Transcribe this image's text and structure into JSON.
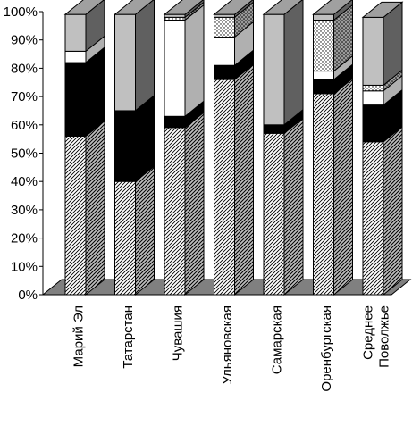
{
  "chart_data": {
    "type": "bar",
    "stacked": true,
    "three_d": true,
    "title": "",
    "xlabel": "",
    "ylabel": "",
    "ylim": [
      0,
      100
    ],
    "yticks": [
      "0%",
      "10%",
      "20%",
      "30%",
      "40%",
      "50%",
      "60%",
      "70%",
      "80%",
      "90%",
      "100%"
    ],
    "grid": false,
    "legend": "none",
    "categories": [
      {
        "line1": "Марий Эл",
        "line2": ""
      },
      {
        "line1": "Татарстан",
        "line2": ""
      },
      {
        "line1": "Чувашия",
        "line2": ""
      },
      {
        "line1": "Ульяновская",
        "line2": ""
      },
      {
        "line1": "Самарская",
        "line2": ""
      },
      {
        "line1": "Оренбургская",
        "line2": ""
      },
      {
        "line1": "Среднее",
        "line2": "Поволжье"
      }
    ],
    "series": [
      {
        "pattern": "hatch",
        "color": "#ffffff",
        "values": [
          56,
          40,
          59,
          76,
          57,
          71,
          54
        ]
      },
      {
        "pattern": "solid",
        "color": "#000000",
        "values": [
          26,
          25,
          4,
          5,
          3,
          5,
          13
        ]
      },
      {
        "pattern": "solid",
        "color": "#ffffff",
        "values": [
          4,
          0,
          34,
          10,
          0,
          3,
          5
        ]
      },
      {
        "pattern": "dots",
        "color": "#ffffff",
        "values": [
          0,
          0,
          1,
          7,
          0,
          18,
          2
        ]
      },
      {
        "pattern": "solid",
        "color": "#c0c0c0",
        "values": [
          13,
          34,
          1,
          1,
          39,
          2,
          24
        ]
      }
    ],
    "colors": {
      "floor": "#808080",
      "side_dark": "#606060",
      "top_dark": "#a0a0a0"
    }
  }
}
